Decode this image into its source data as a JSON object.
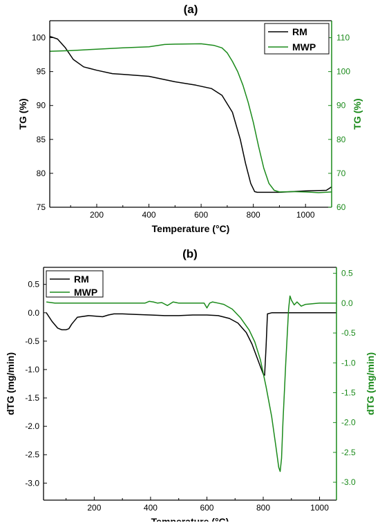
{
  "colors": {
    "rm": "#000000",
    "mwp": "#1a8a1a",
    "axis": "#000000"
  },
  "chart_data": [
    {
      "type": "line",
      "panel_label": "(a)",
      "xlabel": "Temperature (°C)",
      "ylabel": "TG (%)",
      "y2label": "TG (%)",
      "xlim": [
        20,
        1100
      ],
      "ylim": [
        75,
        102.5
      ],
      "y2lim": [
        60,
        115
      ],
      "xticks": [
        200,
        400,
        600,
        800,
        1000
      ],
      "yticks": [
        75,
        80,
        85,
        90,
        95,
        100
      ],
      "y2ticks": [
        60,
        70,
        80,
        90,
        100,
        110
      ],
      "legend_position": "top-right",
      "series": [
        {
          "name": "RM",
          "axis": "left",
          "color": "#000000",
          "x": [
            20,
            50,
            80,
            110,
            150,
            200,
            260,
            300,
            400,
            500,
            580,
            640,
            680,
            720,
            750,
            770,
            790,
            805,
            815,
            850,
            900,
            1000,
            1080,
            1100
          ],
          "y": [
            100.2,
            99.8,
            98.5,
            96.8,
            95.7,
            95.2,
            94.7,
            94.6,
            94.3,
            93.5,
            93.0,
            92.5,
            91.5,
            89.0,
            85.0,
            81.5,
            78.5,
            77.3,
            77.2,
            77.2,
            77.2,
            77.4,
            77.5,
            78.0
          ]
        },
        {
          "name": "MWP",
          "axis": "right",
          "color": "#1a8a1a",
          "x": [
            20,
            100,
            200,
            300,
            400,
            460,
            500,
            600,
            650,
            680,
            700,
            720,
            740,
            760,
            780,
            800,
            820,
            840,
            860,
            880,
            900,
            950,
            1000,
            1050,
            1100
          ],
          "y": [
            106,
            106.2,
            106.6,
            107,
            107.3,
            108,
            108.1,
            108.2,
            107.7,
            107.0,
            105.5,
            103.0,
            100.0,
            96.0,
            91.0,
            85.0,
            78.0,
            71.5,
            67.0,
            65.0,
            64.5,
            64.6,
            64.5,
            64.3,
            64.5
          ]
        }
      ]
    },
    {
      "type": "line",
      "panel_label": "(b)",
      "xlabel": "Temperature (°C)",
      "ylabel": "dTG (mg/min)",
      "y2label": "dTG (mg/min)",
      "xlim": [
        20,
        1060
      ],
      "ylim": [
        -3.3,
        0.8
      ],
      "y2lim": [
        -3.3,
        0.6
      ],
      "xticks": [
        200,
        400,
        600,
        800,
        1000
      ],
      "yticks": [
        0.5,
        0.0,
        -0.5,
        -1.0,
        -1.5,
        -2.0,
        -2.5,
        -3.0
      ],
      "y2ticks": [
        0.5,
        0.0,
        -0.5,
        -1.0,
        -1.5,
        -2.0,
        -2.5,
        -3.0
      ],
      "legend_position": "top-left",
      "series": [
        {
          "name": "RM",
          "axis": "left",
          "color": "#000000",
          "x": [
            30,
            50,
            70,
            85,
            100,
            110,
            120,
            140,
            180,
            230,
            250,
            270,
            300,
            350,
            400,
            450,
            500,
            550,
            600,
            640,
            680,
            710,
            740,
            760,
            775,
            790,
            800,
            805,
            810,
            815,
            830,
            900,
            1000,
            1060
          ],
          "y": [
            0.0,
            -0.15,
            -0.27,
            -0.3,
            -0.3,
            -0.28,
            -0.2,
            -0.08,
            -0.05,
            -0.07,
            -0.04,
            -0.02,
            -0.02,
            -0.03,
            -0.04,
            -0.05,
            -0.05,
            -0.04,
            -0.04,
            -0.05,
            -0.1,
            -0.18,
            -0.35,
            -0.55,
            -0.75,
            -0.95,
            -1.08,
            -1.1,
            -0.6,
            -0.02,
            0.0,
            0.0,
            0.0,
            0.0
          ]
        },
        {
          "name": "MWP",
          "axis": "right",
          "color": "#1a8a1a",
          "x": [
            30,
            60,
            100,
            150,
            200,
            300,
            380,
            395,
            410,
            425,
            440,
            460,
            480,
            500,
            560,
            590,
            600,
            610,
            620,
            640,
            660,
            690,
            720,
            750,
            770,
            790,
            810,
            830,
            845,
            855,
            860,
            865,
            870,
            880,
            890,
            895,
            900,
            910,
            920,
            935,
            950,
            1000,
            1060
          ],
          "y": [
            0.02,
            0.0,
            0.0,
            0.0,
            0.0,
            0.0,
            0.0,
            0.03,
            0.02,
            0.0,
            0.01,
            -0.04,
            0.02,
            0.0,
            0.0,
            0.0,
            -0.08,
            0.0,
            0.02,
            0.0,
            -0.02,
            -0.1,
            -0.25,
            -0.45,
            -0.65,
            -0.95,
            -1.4,
            -1.9,
            -2.4,
            -2.75,
            -2.82,
            -2.6,
            -2.0,
            -1.0,
            -0.1,
            0.12,
            0.05,
            -0.03,
            0.02,
            -0.05,
            -0.02,
            0.0,
            0.0
          ]
        }
      ]
    }
  ]
}
